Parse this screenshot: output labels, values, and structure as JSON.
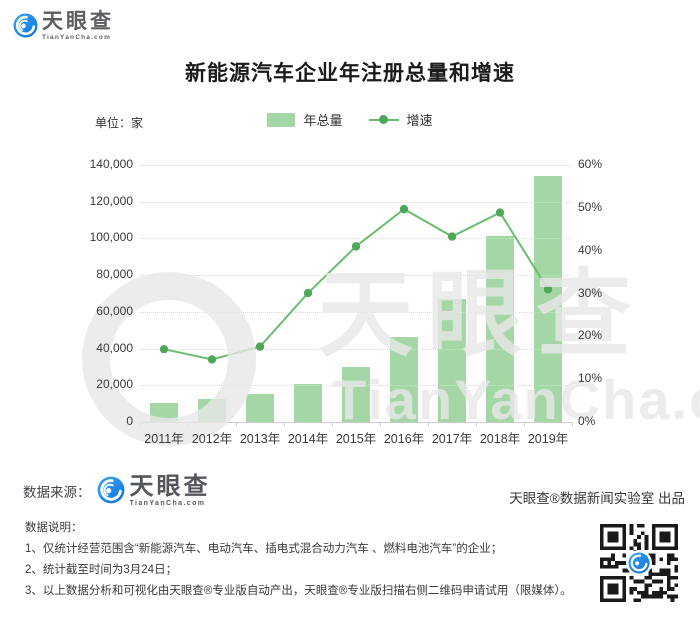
{
  "brand": {
    "name": "天眼查",
    "domain": "TianYanCha.com"
  },
  "title": "新能源汽车企业年注册总量和增速",
  "unit_label": "单位：家",
  "legend": [
    {
      "label": "年总量"
    },
    {
      "label": "增速"
    }
  ],
  "chart_data": {
    "type": "bar+line",
    "categories": [
      "2011年",
      "2012年",
      "2013年",
      "2014年",
      "2015年",
      "2016年",
      "2017年",
      "2018年",
      "2019年"
    ],
    "series": [
      {
        "name": "年总量",
        "type": "bar",
        "y_axis": "left",
        "values": [
          10200,
          12700,
          15400,
          20500,
          30100,
          46100,
          67100,
          101300,
          134100
        ]
      },
      {
        "name": "增速",
        "type": "line",
        "y_axis": "right",
        "values": [
          17.0,
          14.6,
          17.6,
          30.1,
          41.0,
          49.7,
          43.3,
          48.9,
          31.0
        ]
      }
    ],
    "left_axis": {
      "min": 0,
      "max": 140000,
      "step": 20000,
      "ticks": [
        "0",
        "20,000",
        "40,000",
        "60,000",
        "80,000",
        "100,000",
        "120,000",
        "140,000"
      ]
    },
    "right_axis": {
      "min": 0,
      "max": 60,
      "step": 10,
      "ticks": [
        "0%",
        "10%",
        "20%",
        "30%",
        "40%",
        "50%",
        "60%"
      ]
    },
    "grid": "dotted horizontal",
    "legend_position": "top",
    "colors": {
      "bar": "#a5d7a6",
      "line": "#69bd6e",
      "marker": "#4fa85a"
    }
  },
  "footer": {
    "source_label": "数据来源：",
    "produced_by": "天眼查®数据新闻实验室 出品"
  },
  "notes": {
    "heading": "数据说明：",
    "items": [
      "1、仅统计经营范围含“新能源汽车、电动汽车、插电式混合动力汽车 、燃料电池汽车”的企业；",
      "2、统计截至时间为3月24日；",
      "3、以上数据分析和可视化由天眼查®专业版自动产出，天眼查®专业版扫描右侧二维码申请试用（限媒体）。"
    ]
  }
}
